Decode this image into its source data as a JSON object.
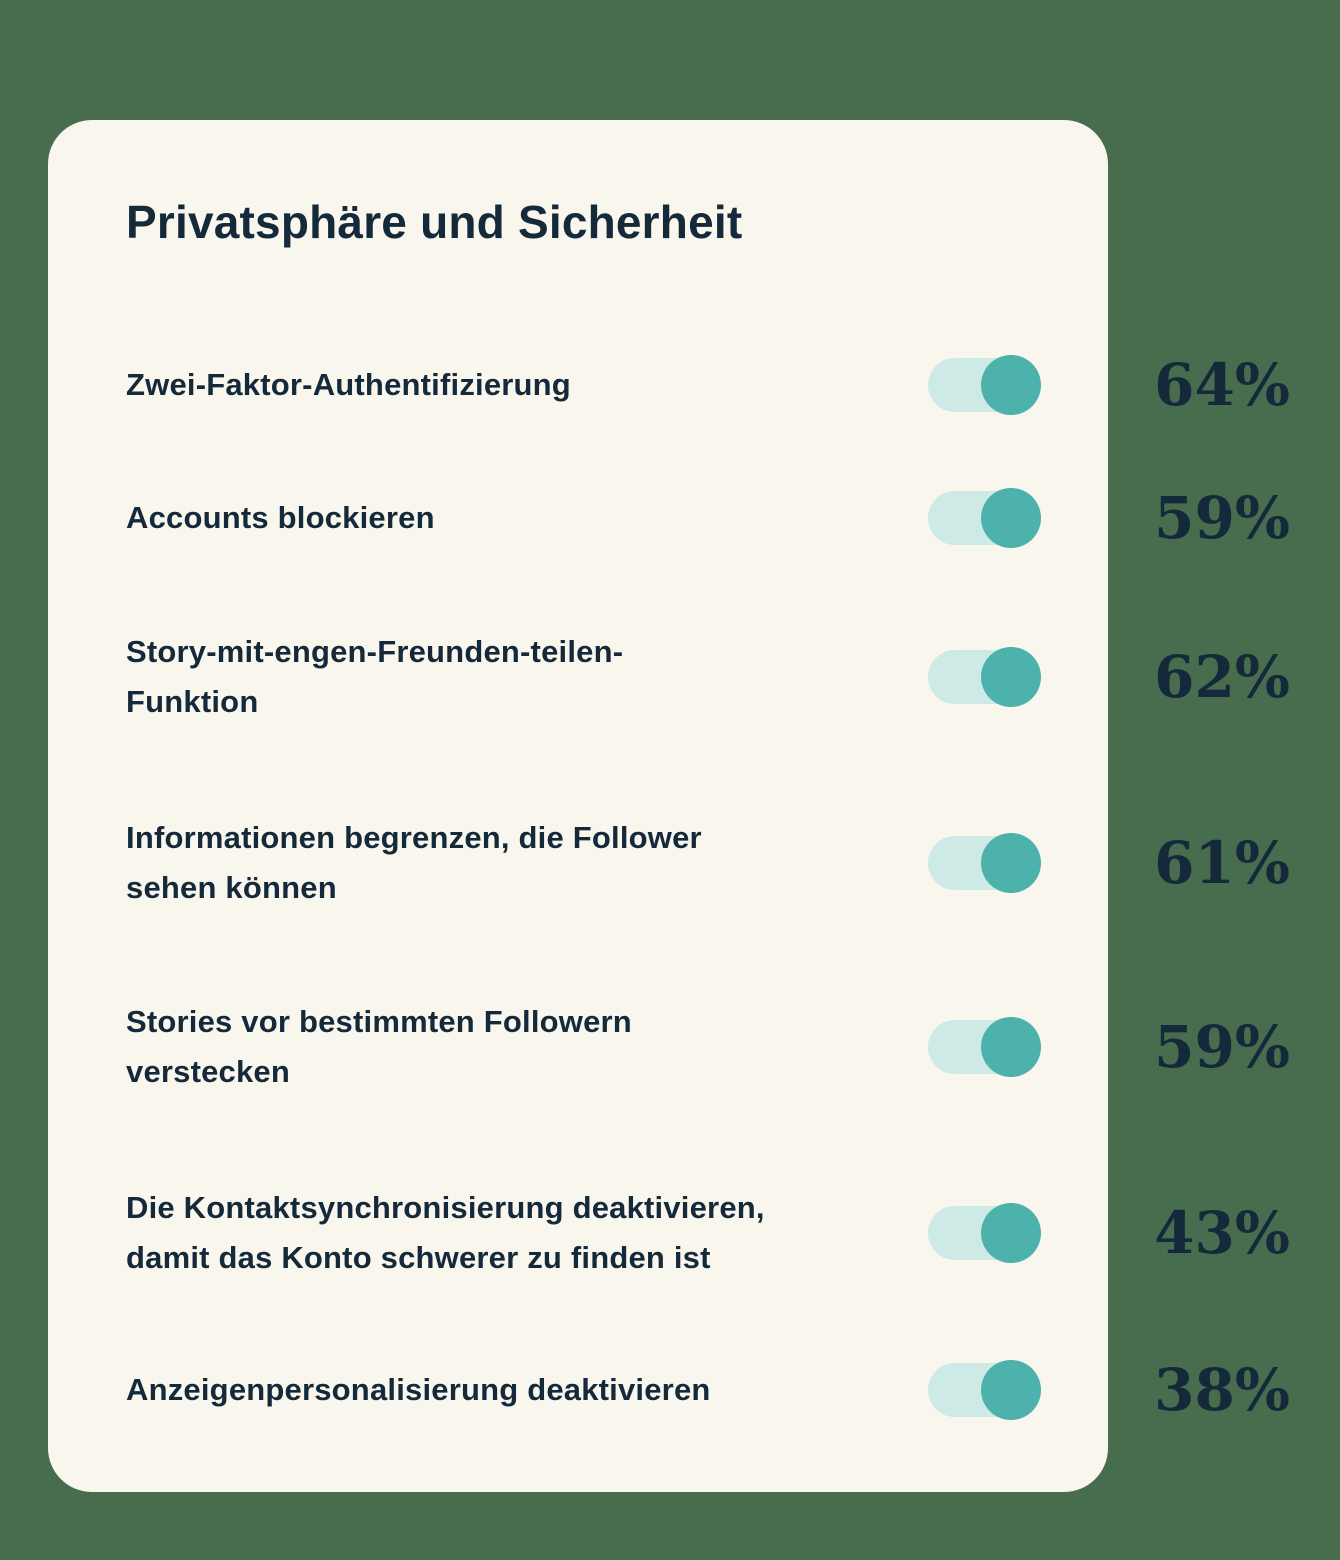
{
  "page": {
    "background_color": "#486c4e"
  },
  "card": {
    "background_color": "#f9f6ee",
    "title": "Privatsphäre und Sicherheit"
  },
  "theme": {
    "text_color": "#14293a",
    "toggle_track_color": "#cdeae6",
    "toggle_knob_color": "#4db2ab"
  },
  "chart_data": {
    "type": "table",
    "title": "Privatsphäre und Sicherheit",
    "categories": [
      "Zwei-Faktor-Authentifizierung",
      "Accounts blockieren",
      "Story-mit-engen-Freunden-teilen-Funktion",
      "Informationen begrenzen, die Follower sehen können",
      "Stories vor bestimmten Followern verstecken",
      "Die Kontaktsynchronisierung deaktivieren, damit das Konto schwerer zu finden ist",
      "Anzeigenpersonalisierung deaktivieren"
    ],
    "values": [
      64,
      59,
      62,
      61,
      59,
      43,
      38
    ],
    "unit": "%"
  },
  "settings": [
    {
      "label": "Zwei-Faktor-Authentifizierung",
      "percent": "64%",
      "toggle_state": "on"
    },
    {
      "label": "Accounts blockieren",
      "percent": "59%",
      "toggle_state": "on"
    },
    {
      "label": "Story-mit-engen-Freunden-teilen-\nFunktion",
      "percent": "62%",
      "toggle_state": "on"
    },
    {
      "label": "Informationen begrenzen, die Follower\nsehen können",
      "percent": "61%",
      "toggle_state": "on"
    },
    {
      "label": "Stories vor bestimmten Followern\nverstecken",
      "percent": "59%",
      "toggle_state": "on"
    },
    {
      "label": "Die Kontaktsynchronisierung deaktivieren,\ndamit das Konto schwerer zu finden ist",
      "percent": "43%",
      "toggle_state": "on"
    },
    {
      "label": "Anzeigenpersonalisierung deaktivieren",
      "percent": "38%",
      "toggle_state": "on"
    }
  ]
}
